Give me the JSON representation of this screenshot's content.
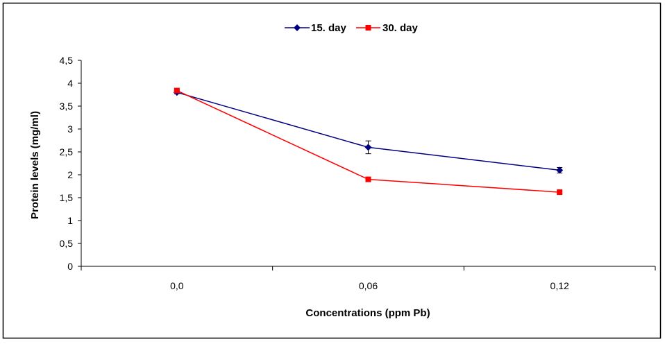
{
  "chart_data": {
    "type": "line",
    "categories": [
      "0,0",
      "0,06",
      "0,12"
    ],
    "series": [
      {
        "name": "15. day",
        "values": [
          3.8,
          2.6,
          2.1
        ],
        "error": [
          0.03,
          0.14,
          0.06
        ],
        "color": "#000080",
        "marker": "diamond"
      },
      {
        "name": "30. day",
        "values": [
          3.84,
          1.9,
          1.62
        ],
        "error": [
          0.03,
          0.03,
          0.03
        ],
        "color": "#FF0000",
        "marker": "square"
      }
    ],
    "xlabel": "Concentrations (ppm Pb)",
    "ylabel": "Protein levels  (mg/ml)",
    "ylim": [
      0,
      4.5
    ],
    "yticks": [
      0,
      0.5,
      1,
      1.5,
      2,
      2.5,
      3,
      3.5,
      4,
      4.5
    ],
    "ytick_labels": [
      "0",
      "0,5",
      "1",
      "1,5",
      "2",
      "2,5",
      "3",
      "3,5",
      "4",
      "4,5"
    ],
    "grid": false,
    "legend_position": "top-center"
  }
}
